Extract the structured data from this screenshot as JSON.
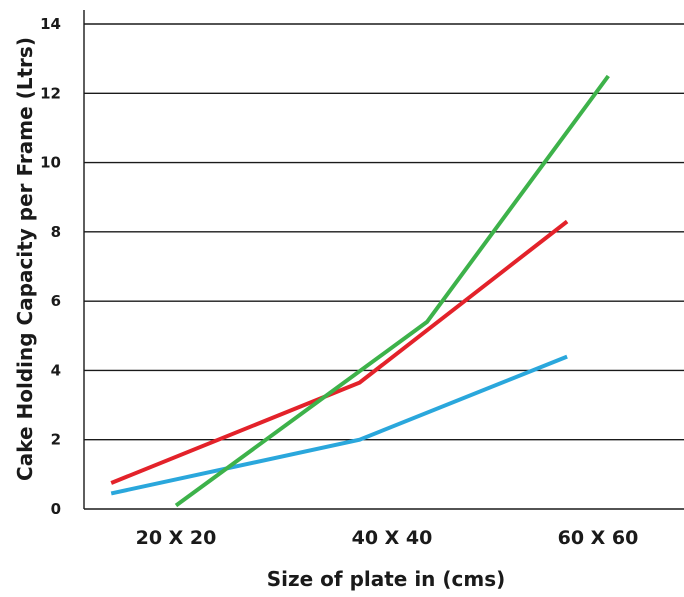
{
  "chart_data": {
    "type": "line",
    "title": "",
    "xlabel": "Size of plate in (cms)",
    "ylabel": "Cake Holding Capacity per Frame (Ltrs)",
    "categories": [
      "20 X 20",
      "40 X 40",
      "60 X 60"
    ],
    "y_ticks": [
      0,
      2,
      4,
      6,
      8,
      10,
      12,
      14
    ],
    "ylim": [
      0,
      14
    ],
    "grid": "horizontal",
    "legend": "none",
    "series": [
      {
        "color": "#2aa7dc",
        "points": [
          [
            0.7,
            0.45
          ],
          [
            1.85,
            2.0
          ],
          [
            2.85,
            4.4
          ]
        ]
      },
      {
        "color": "#e3222a",
        "points": [
          [
            0.7,
            0.75
          ],
          [
            1.85,
            3.65
          ],
          [
            2.85,
            8.3
          ]
        ]
      },
      {
        "color": "#3db24a",
        "points": [
          [
            1.0,
            0.1
          ],
          [
            2.17,
            5.4
          ],
          [
            3.05,
            12.5
          ]
        ]
      }
    ]
  }
}
